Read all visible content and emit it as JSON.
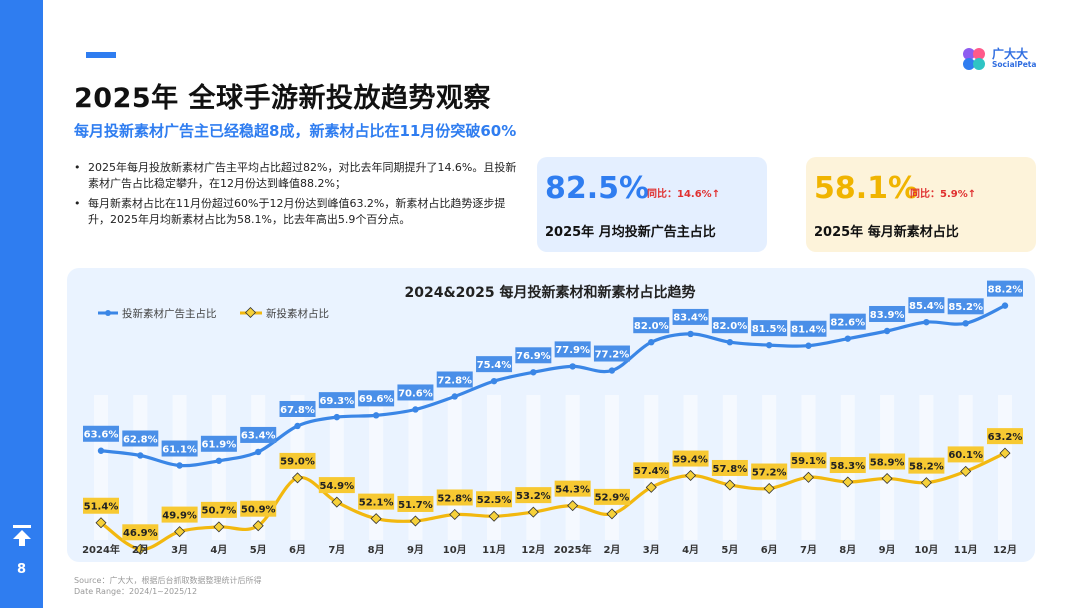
{
  "page": {
    "number": "8"
  },
  "logo": {
    "name": "广大大",
    "sub": "SocialPeta"
  },
  "header": {
    "title": "2025年 全球手游新投放趋势观察",
    "subtitle": "每月投新素材广告主已经稳超8成，新素材占比在11月份突破60%"
  },
  "bullets": [
    "2025年每月投放新素材广告主平均占比超过82%，对比去年同期提升了14.6%。且投新素材广告占比稳定攀升，在12月份达到峰值88.2%；",
    "每月新素材占比在11月份超过60%于12月份达到峰值63.2%，新素材占比趋势逐步提升，2025年月均新素材占比为58.1%，比去年高出5.9个百分点。"
  ],
  "cards": [
    {
      "value": "82.5%",
      "yoy": "同比：14.6%↑",
      "caption": "2025年 月均投新广告主占比",
      "color": "#2f7df0"
    },
    {
      "value": "58.1%",
      "yoy": "同比：5.9%↑",
      "caption": "2025年 每月新素材占比",
      "color": "#f0b400"
    }
  ],
  "colors": {
    "blue": "#3a86e6",
    "yellow": "#f2b80f",
    "blue_label": "#4a8fe8",
    "yellow_label": "#f7c932"
  },
  "source": {
    "line1": "Source：广大大，根据后台抓取数据整理统计后所得",
    "line2": "Date Range：2024/1~2025/12"
  },
  "chart_data": {
    "type": "line",
    "title": "2024&2025 每月投新素材和新素材占比趋势",
    "categories": [
      "2024年",
      "2月",
      "3月",
      "4月",
      "5月",
      "6月",
      "7月",
      "8月",
      "9月",
      "10月",
      "11月",
      "12月",
      "2025年",
      "2月",
      "3月",
      "4月",
      "5月",
      "6月",
      "7月",
      "8月",
      "9月",
      "10月",
      "11月",
      "12月"
    ],
    "series": [
      {
        "name": "投新素材广告主占比",
        "values": [
          63.6,
          62.8,
          61.1,
          61.9,
          63.4,
          67.8,
          69.3,
          69.6,
          70.6,
          72.8,
          75.4,
          76.9,
          77.9,
          77.2,
          82.0,
          83.4,
          82.0,
          81.5,
          81.4,
          82.6,
          83.9,
          85.4,
          85.2,
          88.2
        ]
      },
      {
        "name": "新投素材占比",
        "values": [
          51.4,
          46.9,
          49.9,
          50.7,
          50.9,
          59.0,
          54.9,
          52.1,
          51.7,
          52.8,
          52.5,
          53.2,
          54.3,
          52.9,
          57.4,
          59.4,
          57.8,
          57.2,
          59.1,
          58.3,
          58.9,
          58.2,
          60.1,
          63.2
        ]
      }
    ],
    "unit": "%",
    "legend": "top-left"
  }
}
